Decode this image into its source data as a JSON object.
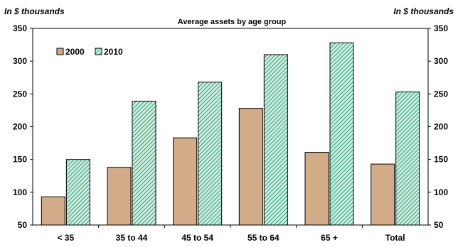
{
  "chart_data": {
    "type": "bar",
    "title": "Average assets by age group",
    "ylabel_left": "In $ thousands",
    "ylabel_right": "In $ thousands",
    "categories": [
      "< 35",
      "35 to 44",
      "45 to 54",
      "55 to 64",
      "65 +",
      "Total"
    ],
    "series": [
      {
        "name": "2000",
        "values": [
          93,
          138,
          183,
          228,
          161,
          143
        ],
        "color": "#d2ac88",
        "pattern": "solid"
      },
      {
        "name": "2010",
        "values": [
          150,
          239,
          268,
          310,
          328,
          253
        ],
        "color": "#2f9e78",
        "pattern": "diagonal-hatch"
      }
    ],
    "ylim": [
      50,
      350
    ],
    "yticks": [
      50,
      100,
      150,
      200,
      250,
      300,
      350
    ],
    "legend_position": "top-left",
    "grid": false
  }
}
